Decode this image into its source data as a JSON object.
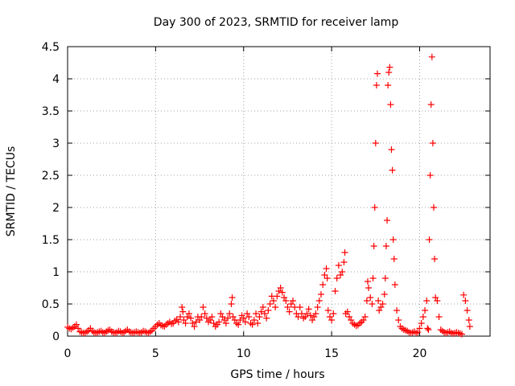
{
  "chart_data": {
    "type": "scatter",
    "title": "Day 300 of 2023, SRMTID for receiver lamp",
    "xlabel": "GPS time / hours",
    "ylabel": "SRMTID / TECUs",
    "xlim": [
      0,
      24
    ],
    "ylim": [
      0,
      4.5
    ],
    "xticks": [
      0,
      5,
      10,
      15,
      20
    ],
    "yticks": [
      0,
      0.5,
      1,
      1.5,
      2,
      2.5,
      3,
      3.5,
      4,
      4.5
    ],
    "xtick_labels": [
      "0",
      "5",
      "10",
      "15",
      "20"
    ],
    "ytick_labels": [
      "0",
      "0.5",
      "1",
      "1.5",
      "2",
      "2.5",
      "3",
      "3.5",
      "4",
      "4.5"
    ],
    "grid": true,
    "marker": "+",
    "series": [
      {
        "name": "SRMTID",
        "color": "#ff0000",
        "points": [
          [
            0.0,
            0.14
          ],
          [
            0.1,
            0.12
          ],
          [
            0.2,
            0.11
          ],
          [
            0.3,
            0.13
          ],
          [
            0.4,
            0.15
          ],
          [
            0.5,
            0.18
          ],
          [
            0.6,
            0.12
          ],
          [
            0.7,
            0.07
          ],
          [
            0.8,
            0.06
          ],
          [
            0.9,
            0.05
          ],
          [
            1.0,
            0.05
          ],
          [
            1.1,
            0.07
          ],
          [
            1.2,
            0.09
          ],
          [
            1.3,
            0.12
          ],
          [
            1.4,
            0.08
          ],
          [
            1.5,
            0.06
          ],
          [
            1.6,
            0.05
          ],
          [
            1.7,
            0.06
          ],
          [
            1.8,
            0.07
          ],
          [
            1.9,
            0.08
          ],
          [
            2.0,
            0.06
          ],
          [
            2.1,
            0.05
          ],
          [
            2.2,
            0.07
          ],
          [
            2.3,
            0.09
          ],
          [
            2.4,
            0.1
          ],
          [
            2.5,
            0.07
          ],
          [
            2.6,
            0.06
          ],
          [
            2.7,
            0.05
          ],
          [
            2.8,
            0.06
          ],
          [
            2.9,
            0.08
          ],
          [
            3.0,
            0.07
          ],
          [
            3.1,
            0.05
          ],
          [
            3.2,
            0.06
          ],
          [
            3.3,
            0.08
          ],
          [
            3.4,
            0.1
          ],
          [
            3.5,
            0.07
          ],
          [
            3.6,
            0.06
          ],
          [
            3.7,
            0.05
          ],
          [
            3.8,
            0.06
          ],
          [
            3.9,
            0.07
          ],
          [
            4.0,
            0.06
          ],
          [
            4.1,
            0.05
          ],
          [
            4.2,
            0.06
          ],
          [
            4.3,
            0.08
          ],
          [
            4.4,
            0.07
          ],
          [
            4.5,
            0.06
          ],
          [
            4.6,
            0.05
          ],
          [
            4.7,
            0.07
          ],
          [
            4.8,
            0.09
          ],
          [
            4.9,
            0.12
          ],
          [
            5.0,
            0.15
          ],
          [
            5.1,
            0.18
          ],
          [
            5.2,
            0.2
          ],
          [
            5.3,
            0.17
          ],
          [
            5.4,
            0.16
          ],
          [
            5.5,
            0.15
          ],
          [
            5.6,
            0.18
          ],
          [
            5.7,
            0.2
          ],
          [
            5.8,
            0.22
          ],
          [
            5.9,
            0.19
          ],
          [
            6.0,
            0.2
          ],
          [
            6.1,
            0.24
          ],
          [
            6.2,
            0.26
          ],
          [
            6.3,
            0.22
          ],
          [
            6.4,
            0.3
          ],
          [
            6.5,
            0.45
          ],
          [
            6.55,
            0.38
          ],
          [
            6.6,
            0.25
          ],
          [
            6.7,
            0.2
          ],
          [
            6.8,
            0.3
          ],
          [
            6.9,
            0.35
          ],
          [
            7.0,
            0.28
          ],
          [
            7.1,
            0.2
          ],
          [
            7.2,
            0.15
          ],
          [
            7.3,
            0.22
          ],
          [
            7.4,
            0.3
          ],
          [
            7.5,
            0.25
          ],
          [
            7.6,
            0.3
          ],
          [
            7.7,
            0.45
          ],
          [
            7.8,
            0.35
          ],
          [
            7.9,
            0.28
          ],
          [
            8.0,
            0.22
          ],
          [
            8.1,
            0.25
          ],
          [
            8.2,
            0.3
          ],
          [
            8.3,
            0.2
          ],
          [
            8.4,
            0.15
          ],
          [
            8.5,
            0.18
          ],
          [
            8.6,
            0.22
          ],
          [
            8.7,
            0.35
          ],
          [
            8.8,
            0.3
          ],
          [
            8.9,
            0.25
          ],
          [
            9.0,
            0.2
          ],
          [
            9.1,
            0.28
          ],
          [
            9.2,
            0.35
          ],
          [
            9.3,
            0.5
          ],
          [
            9.35,
            0.6
          ],
          [
            9.4,
            0.3
          ],
          [
            9.5,
            0.25
          ],
          [
            9.6,
            0.2
          ],
          [
            9.7,
            0.18
          ],
          [
            9.8,
            0.25
          ],
          [
            9.9,
            0.32
          ],
          [
            10.0,
            0.28
          ],
          [
            10.1,
            0.22
          ],
          [
            10.2,
            0.35
          ],
          [
            10.3,
            0.3
          ],
          [
            10.4,
            0.2
          ],
          [
            10.5,
            0.18
          ],
          [
            10.6,
            0.25
          ],
          [
            10.7,
            0.35
          ],
          [
            10.8,
            0.2
          ],
          [
            10.9,
            0.3
          ],
          [
            11.0,
            0.38
          ],
          [
            11.1,
            0.45
          ],
          [
            11.2,
            0.35
          ],
          [
            11.3,
            0.28
          ],
          [
            11.4,
            0.4
          ],
          [
            11.5,
            0.5
          ],
          [
            11.6,
            0.62
          ],
          [
            11.7,
            0.55
          ],
          [
            11.8,
            0.45
          ],
          [
            11.9,
            0.62
          ],
          [
            12.0,
            0.7
          ],
          [
            12.1,
            0.75
          ],
          [
            12.2,
            0.68
          ],
          [
            12.3,
            0.6
          ],
          [
            12.4,
            0.55
          ],
          [
            12.5,
            0.45
          ],
          [
            12.6,
            0.38
          ],
          [
            12.7,
            0.5
          ],
          [
            12.8,
            0.55
          ],
          [
            12.9,
            0.45
          ],
          [
            13.0,
            0.35
          ],
          [
            13.1,
            0.3
          ],
          [
            13.2,
            0.45
          ],
          [
            13.3,
            0.35
          ],
          [
            13.4,
            0.28
          ],
          [
            13.5,
            0.3
          ],
          [
            13.6,
            0.35
          ],
          [
            13.7,
            0.42
          ],
          [
            13.8,
            0.32
          ],
          [
            13.9,
            0.25
          ],
          [
            14.0,
            0.3
          ],
          [
            14.1,
            0.35
          ],
          [
            14.2,
            0.45
          ],
          [
            14.3,
            0.55
          ],
          [
            14.4,
            0.65
          ],
          [
            14.5,
            0.8
          ],
          [
            14.6,
            0.95
          ],
          [
            14.7,
            1.05
          ],
          [
            14.75,
            0.9
          ],
          [
            14.8,
            0.4
          ],
          [
            14.9,
            0.3
          ],
          [
            15.0,
            0.25
          ],
          [
            15.1,
            0.35
          ],
          [
            15.2,
            0.7
          ],
          [
            15.3,
            0.9
          ],
          [
            15.4,
            1.1
          ],
          [
            15.5,
            0.95
          ],
          [
            15.6,
            1.0
          ],
          [
            15.7,
            1.15
          ],
          [
            15.75,
            1.3
          ],
          [
            15.8,
            0.35
          ],
          [
            15.9,
            0.38
          ],
          [
            16.0,
            0.3
          ],
          [
            16.1,
            0.25
          ],
          [
            16.2,
            0.2
          ],
          [
            16.3,
            0.18
          ],
          [
            16.4,
            0.16
          ],
          [
            16.5,
            0.17
          ],
          [
            16.6,
            0.2
          ],
          [
            16.7,
            0.22
          ],
          [
            16.8,
            0.25
          ],
          [
            16.9,
            0.3
          ],
          [
            17.0,
            0.55
          ],
          [
            17.05,
            0.85
          ],
          [
            17.1,
            0.75
          ],
          [
            17.2,
            0.6
          ],
          [
            17.3,
            0.5
          ],
          [
            17.35,
            0.9
          ],
          [
            17.4,
            1.4
          ],
          [
            17.45,
            2.0
          ],
          [
            17.5,
            3.0
          ],
          [
            17.55,
            3.9
          ],
          [
            17.6,
            4.08
          ],
          [
            17.65,
            0.55
          ],
          [
            17.7,
            0.4
          ],
          [
            17.8,
            0.45
          ],
          [
            17.9,
            0.5
          ],
          [
            18.0,
            0.65
          ],
          [
            18.05,
            0.9
          ],
          [
            18.1,
            1.4
          ],
          [
            18.15,
            1.8
          ],
          [
            18.2,
            3.9
          ],
          [
            18.25,
            4.1
          ],
          [
            18.3,
            4.18
          ],
          [
            18.35,
            3.6
          ],
          [
            18.4,
            2.9
          ],
          [
            18.45,
            2.58
          ],
          [
            18.5,
            1.5
          ],
          [
            18.55,
            1.2
          ],
          [
            18.6,
            0.8
          ],
          [
            18.7,
            0.4
          ],
          [
            18.8,
            0.25
          ],
          [
            18.9,
            0.15
          ],
          [
            19.0,
            0.12
          ],
          [
            19.1,
            0.1
          ],
          [
            19.2,
            0.09
          ],
          [
            19.3,
            0.08
          ],
          [
            19.4,
            0.06
          ],
          [
            19.5,
            0.05
          ],
          [
            19.6,
            0.06
          ],
          [
            19.7,
            0.07
          ],
          [
            19.8,
            0.05
          ],
          [
            19.9,
            0.06
          ],
          [
            20.0,
            0.12
          ],
          [
            20.1,
            0.2
          ],
          [
            20.2,
            0.3
          ],
          [
            20.3,
            0.4
          ],
          [
            20.4,
            0.55
          ],
          [
            20.45,
            0.12
          ],
          [
            20.5,
            0.1
          ],
          [
            20.55,
            1.5
          ],
          [
            20.6,
            2.5
          ],
          [
            20.65,
            3.6
          ],
          [
            20.7,
            4.34
          ],
          [
            20.75,
            3.0
          ],
          [
            20.8,
            2.0
          ],
          [
            20.85,
            1.2
          ],
          [
            20.9,
            0.6
          ],
          [
            21.0,
            0.55
          ],
          [
            21.1,
            0.3
          ],
          [
            21.2,
            0.1
          ],
          [
            21.3,
            0.08
          ],
          [
            21.4,
            0.06
          ],
          [
            21.5,
            0.05
          ],
          [
            21.6,
            0.06
          ],
          [
            21.7,
            0.07
          ],
          [
            21.8,
            0.05
          ],
          [
            21.9,
            0.04
          ],
          [
            22.0,
            0.05
          ],
          [
            22.1,
            0.06
          ],
          [
            22.2,
            0.05
          ],
          [
            22.3,
            0.04
          ],
          [
            22.4,
            0.03
          ],
          [
            22.5,
            0.64
          ],
          [
            22.6,
            0.55
          ],
          [
            22.7,
            0.4
          ],
          [
            22.8,
            0.25
          ],
          [
            22.85,
            0.15
          ]
        ]
      }
    ]
  }
}
